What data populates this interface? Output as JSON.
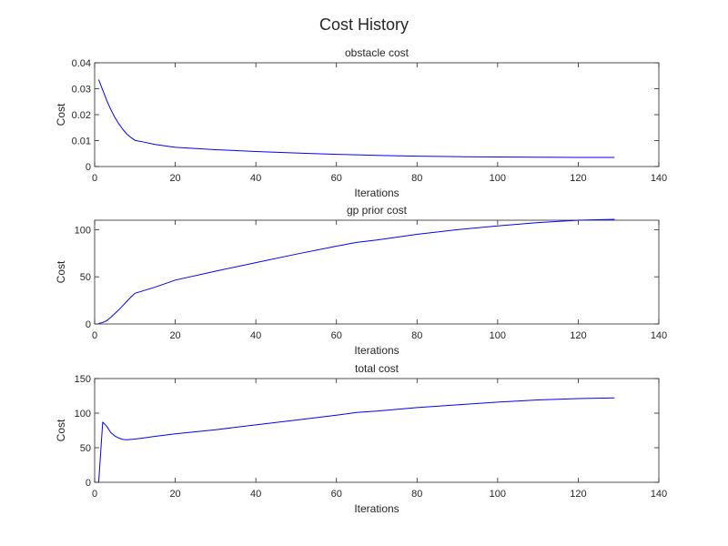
{
  "figure": {
    "title": "Cost History",
    "line_color": "#0000ff",
    "axes_color": "#262626",
    "background": "#ffffff"
  },
  "chart_data": [
    {
      "type": "line",
      "title": "obstacle cost",
      "xlabel": "Iterations",
      "ylabel": "Cost",
      "xlim": [
        0,
        140
      ],
      "ylim": [
        0,
        0.04
      ],
      "xticks": [
        0,
        20,
        40,
        60,
        80,
        100,
        120,
        140
      ],
      "yticks": [
        0,
        0.01,
        0.02,
        0.03,
        0.04
      ],
      "ytick_labels": [
        "0",
        "0.01",
        "0.02",
        "0.03",
        "0.04"
      ],
      "grid": false,
      "series": [
        {
          "color": "#0000ff",
          "x": [
            1,
            2,
            3,
            4,
            5,
            6,
            7,
            8,
            9,
            10,
            12,
            15,
            20,
            30,
            40,
            50,
            60,
            65,
            70,
            80,
            90,
            100,
            110,
            120,
            129
          ],
          "y": [
            0.0335,
            0.0295,
            0.0255,
            0.022,
            0.019,
            0.0165,
            0.0143,
            0.0125,
            0.0112,
            0.0101,
            0.0095,
            0.0085,
            0.0074,
            0.0065,
            0.0058,
            0.0052,
            0.0047,
            0.0045,
            0.0043,
            0.004,
            0.0038,
            0.0037,
            0.0036,
            0.0035,
            0.0035
          ]
        }
      ]
    },
    {
      "type": "line",
      "title": "gp prior cost",
      "xlabel": "Iterations",
      "ylabel": "Cost",
      "xlim": [
        0,
        140
      ],
      "ylim": [
        0,
        110
      ],
      "xticks": [
        0,
        20,
        40,
        60,
        80,
        100,
        120,
        140
      ],
      "yticks": [
        0,
        50,
        100
      ],
      "ytick_labels": [
        "0",
        "50",
        "100"
      ],
      "grid": false,
      "series": [
        {
          "color": "#0000ff",
          "x": [
            1,
            2,
            3,
            4,
            5,
            6,
            7,
            8,
            9,
            10,
            15,
            20,
            30,
            40,
            50,
            60,
            65,
            70,
            80,
            90,
            100,
            110,
            120,
            129
          ],
          "y": [
            0.5,
            1.5,
            3.5,
            7,
            11,
            15,
            19.5,
            24,
            28.5,
            32.5,
            39,
            46.5,
            56,
            65,
            74,
            82.5,
            86.5,
            89,
            95,
            100,
            104,
            107.5,
            110,
            111
          ]
        }
      ]
    },
    {
      "type": "line",
      "title": "total cost",
      "xlabel": "Iterations",
      "ylabel": "Cost",
      "xlim": [
        0,
        140
      ],
      "ylim": [
        0,
        150
      ],
      "xticks": [
        0,
        20,
        40,
        60,
        80,
        100,
        120,
        140
      ],
      "yticks": [
        0,
        50,
        100,
        150
      ],
      "ytick_labels": [
        "0",
        "50",
        "100",
        "150"
      ],
      "grid": false,
      "series": [
        {
          "color": "#0000ff",
          "x": [
            1,
            2,
            3,
            4,
            5,
            6,
            7,
            8,
            10,
            12,
            15,
            20,
            30,
            40,
            50,
            60,
            65,
            70,
            80,
            90,
            100,
            110,
            120,
            129
          ],
          "y": [
            0,
            87,
            81,
            72,
            67,
            64,
            62,
            61.5,
            62.5,
            64,
            66.5,
            70,
            76,
            83,
            90,
            97,
            101,
            103,
            108,
            112,
            116,
            119,
            121,
            122
          ]
        }
      ]
    }
  ]
}
